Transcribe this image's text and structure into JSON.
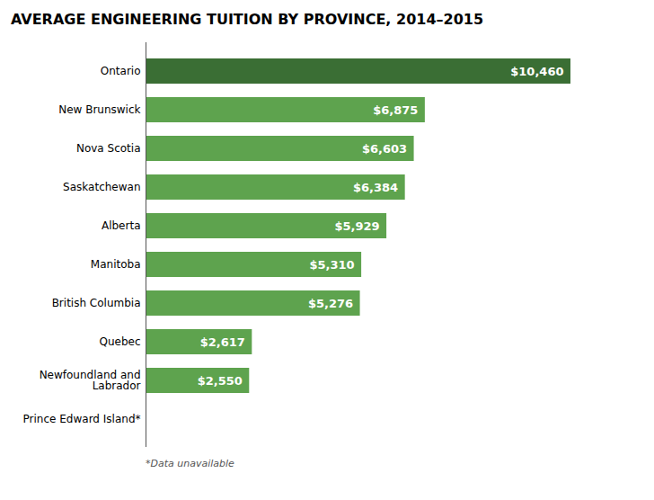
{
  "chart_data": {
    "type": "bar",
    "orientation": "horizontal",
    "title": "AVERAGE ENGINEERING TUITION BY PROVINCE, 2014–2015",
    "categories": [
      "Ontario",
      "New Brunswick",
      "Nova Scotia",
      "Saskatchewan",
      "Alberta",
      "Manitoba",
      "British Columbia",
      "Quebec",
      "Newfoundland and\nLabrador",
      "Prince Edward Island*"
    ],
    "values": [
      10460,
      6875,
      6603,
      6384,
      5929,
      5310,
      5276,
      2617,
      2550,
      0
    ],
    "value_labels": [
      "$10,460",
      "$6,875",
      "$6,603",
      "$6,384",
      "$5,929",
      "$5,310",
      "$5,276",
      "$2,617",
      "$2,550",
      null
    ],
    "colors": [
      "#3a6e34",
      "#5ea34e",
      "#5ea34e",
      "#5ea34e",
      "#5ea34e",
      "#5ea34e",
      "#5ea34e",
      "#5ea34e",
      "#5ea34e",
      "#5ea34e"
    ],
    "xlim": [
      0,
      11500
    ],
    "data_labels": true,
    "tick_labels": "y",
    "grid": false,
    "annotations": [
      "*Data unavailable"
    ]
  }
}
